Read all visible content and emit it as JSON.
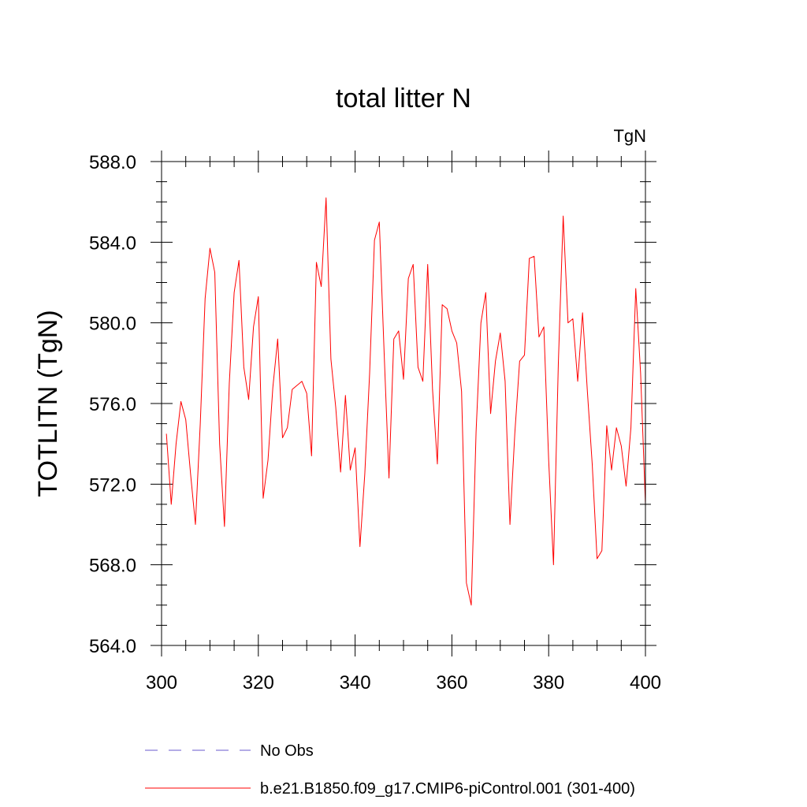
{
  "chart_data": {
    "type": "line",
    "title": "total litter N",
    "units_label": "TgN",
    "ylabel": "TOTLITN  (TgN)",
    "xlabel": "",
    "xlim": [
      300,
      400
    ],
    "ylim": [
      564,
      588
    ],
    "x_ticks": [
      300,
      320,
      340,
      360,
      380,
      400
    ],
    "x_tick_labels": [
      "300",
      "320",
      "340",
      "360",
      "380",
      "400"
    ],
    "y_ticks": [
      564,
      568,
      572,
      576,
      580,
      584,
      588
    ],
    "y_tick_labels": [
      "564.0",
      "568.0",
      "572.0",
      "576.0",
      "580.0",
      "584.0",
      "588.0"
    ],
    "x_minor_step": 5,
    "y_minor_step": 1,
    "grid": false,
    "legend_placement": "bottom",
    "series": [
      {
        "name": "No Obs",
        "color": "#6a5acd",
        "dash": "dashed",
        "x": [],
        "values": []
      },
      {
        "name": "b.e21.B1850.f09_g17.CMIP6-piControl.001 (301-400)",
        "color": "#ff0000",
        "dash": "solid",
        "x": [
          301,
          302,
          303,
          304,
          305,
          306,
          307,
          308,
          309,
          310,
          311,
          312,
          313,
          314,
          315,
          316,
          317,
          318,
          319,
          320,
          321,
          322,
          323,
          324,
          325,
          326,
          327,
          328,
          329,
          330,
          331,
          332,
          333,
          334,
          335,
          336,
          337,
          338,
          339,
          340,
          341,
          342,
          343,
          344,
          345,
          346,
          347,
          348,
          349,
          350,
          351,
          352,
          353,
          354,
          355,
          356,
          357,
          358,
          359,
          360,
          361,
          362,
          363,
          364,
          365,
          366,
          367,
          368,
          369,
          370,
          371,
          372,
          373,
          374,
          375,
          376,
          377,
          378,
          379,
          380,
          381,
          382,
          383,
          384,
          385,
          386,
          387,
          388,
          389,
          390,
          391,
          392,
          393,
          394,
          395,
          396,
          397,
          398,
          399,
          400
        ],
        "values": [
          574.5,
          571.0,
          574.0,
          576.1,
          575.2,
          572.5,
          570.0,
          575.0,
          581.2,
          583.7,
          582.5,
          574.0,
          569.9,
          577.0,
          581.5,
          583.1,
          577.8,
          576.2,
          579.8,
          581.3,
          571.3,
          573.2,
          576.8,
          579.2,
          574.3,
          574.8,
          576.7,
          576.9,
          577.1,
          576.5,
          573.4,
          583.0,
          581.8,
          586.2,
          578.2,
          575.8,
          572.6,
          576.4,
          572.7,
          573.8,
          568.9,
          572.5,
          577.5,
          584.1,
          585.0,
          578.5,
          572.3,
          579.2,
          579.6,
          577.2,
          582.2,
          582.9,
          577.8,
          577.1,
          582.9,
          576.7,
          573.0,
          580.9,
          580.7,
          579.6,
          579.0,
          576.6,
          567.1,
          566.0,
          574.6,
          580.0,
          581.5,
          575.5,
          578.1,
          579.5,
          577.1,
          570.0,
          574.5,
          578.1,
          578.4,
          583.2,
          583.3,
          579.3,
          579.8,
          573.2,
          568.0,
          578.0,
          585.3,
          580.0,
          580.2,
          577.1,
          580.5,
          576.6,
          573.0,
          568.3,
          568.7,
          574.9,
          572.7,
          574.8,
          573.9,
          571.9,
          574.8,
          581.7,
          577.5,
          571.0
        ]
      }
    ]
  }
}
